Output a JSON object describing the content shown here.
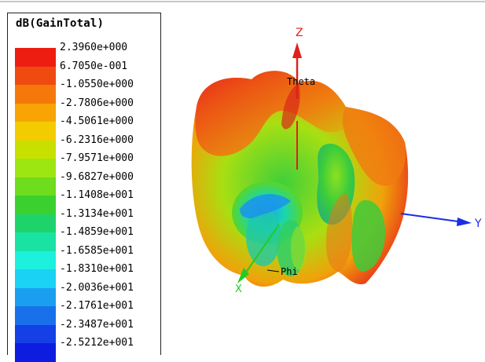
{
  "legend": {
    "title": "dB(GainTotal)",
    "items": [
      {
        "label": "2.3960e+000",
        "color": "#ee1d12"
      },
      {
        "label": "6.7050e-001",
        "color": "#ef4a10"
      },
      {
        "label": "-1.0550e+000",
        "color": "#f4790a"
      },
      {
        "label": "-2.7806e+000",
        "color": "#f7a404"
      },
      {
        "label": "-4.5061e+000",
        "color": "#f3cc00"
      },
      {
        "label": "-6.2316e+000",
        "color": "#c8e000"
      },
      {
        "label": "-7.9571e+000",
        "color": "#9de611"
      },
      {
        "label": "-9.6827e+000",
        "color": "#6fdc1c"
      },
      {
        "label": "-1.1408e+001",
        "color": "#3ad12f"
      },
      {
        "label": "-1.3134e+001",
        "color": "#1fd36b"
      },
      {
        "label": "-1.4859e+001",
        "color": "#19e3a3"
      },
      {
        "label": "-1.6585e+001",
        "color": "#1df1dd"
      },
      {
        "label": "-1.8310e+001",
        "color": "#1ad2f3"
      },
      {
        "label": "-2.0036e+001",
        "color": "#1a9ff0"
      },
      {
        "label": "-2.1761e+001",
        "color": "#1871ea"
      },
      {
        "label": "-2.3487e+001",
        "color": "#1440e6"
      },
      {
        "label": "-2.5212e+001",
        "color": "#0e1ce0"
      }
    ]
  },
  "axes": {
    "z_label": "Z",
    "y_label": "Y",
    "x_label": "X",
    "theta_label": "Theta",
    "phi_label": "Phi",
    "z_color": "#e0201a",
    "y_color": "#1a2ee6",
    "x_color": "#22cc22"
  }
}
